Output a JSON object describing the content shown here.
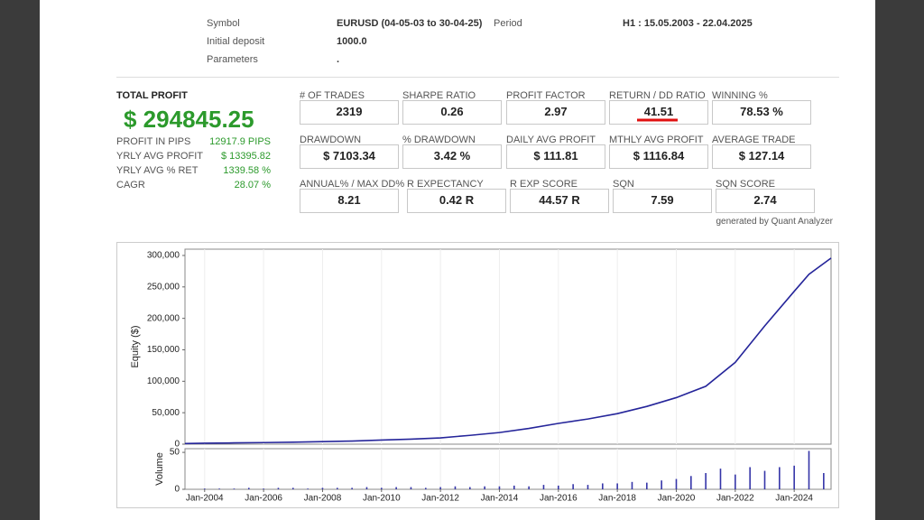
{
  "header": {
    "rows": [
      [
        "Symbol",
        "EURUSD (04-05-03 to 30-04-25)",
        "Period",
        "H1 : 15.05.2003 - 22.04.2025"
      ],
      [
        "Initial deposit",
        "1000.0"
      ],
      [
        "Parameters",
        "."
      ]
    ]
  },
  "summary": {
    "title": "TOTAL PROFIT",
    "total": "$ 294845.25",
    "rows": [
      [
        "PROFIT IN PIPS",
        "12917.9 PIPS"
      ],
      [
        "YRLY AVG PROFIT",
        "$ 13395.82"
      ],
      [
        "YRLY AVG % RET",
        "1339.58 %"
      ],
      [
        "CAGR",
        "28.07 %"
      ]
    ]
  },
  "metrics": [
    [
      {
        "label": "# OF TRADES",
        "value": "2319"
      },
      {
        "label": "SHARPE RATIO",
        "value": "0.26"
      },
      {
        "label": "PROFIT FACTOR",
        "value": "2.97"
      },
      {
        "label": "RETURN / DD RATIO",
        "value": "41.51"
      },
      {
        "label": "WINNING %",
        "value": "78.53 %"
      }
    ],
    [
      {
        "label": "DRAWDOWN",
        "value": "$ 7103.34"
      },
      {
        "label": "% DRAWDOWN",
        "value": "3.42 %"
      },
      {
        "label": "DAILY AVG PROFIT",
        "value": "$ 111.81"
      },
      {
        "label": "MTHLY AVG PROFIT",
        "value": "$ 1116.84"
      },
      {
        "label": "AVERAGE TRADE",
        "value": "$ 127.14"
      }
    ],
    [
      {
        "label": "ANNUAL% / MAX DD%",
        "value": "8.21"
      },
      {
        "label": "R EXPECTANCY",
        "value": "0.42 R"
      },
      {
        "label": "R EXP SCORE",
        "value": "44.57 R"
      },
      {
        "label": "SQN",
        "value": "7.59"
      },
      {
        "label": "SQN SCORE",
        "value": "2.74"
      }
    ]
  ],
  "footer_note": "generated by Quant Analyzer",
  "chart_data": [
    {
      "type": "line",
      "y_label": "Equity ($)",
      "color": "#25259a",
      "grid": true,
      "x": [
        "May-2003",
        "Jan-2004",
        "Jan-2005",
        "Jan-2006",
        "Jan-2007",
        "Jan-2008",
        "Jan-2009",
        "Jan-2010",
        "Jan-2011",
        "Jan-2012",
        "Jan-2013",
        "Jan-2014",
        "Jan-2015",
        "Jan-2016",
        "Jan-2017",
        "Jan-2018",
        "Jan-2019",
        "Jan-2020",
        "Jan-2021",
        "Jan-2022",
        "Jan-2023",
        "Jan-2024",
        "Jul-2024",
        "Apr-2025"
      ],
      "values": [
        1000,
        1500,
        2000,
        2500,
        3200,
        4000,
        5000,
        6500,
        8000,
        10000,
        14000,
        18500,
        25000,
        33000,
        40000,
        48500,
        60000,
        74000,
        92000,
        130000,
        188000,
        243000,
        270000,
        295845
      ],
      "xlim": [
        "May-2003",
        "Apr-2025"
      ],
      "ylim": [
        0,
        310000
      ],
      "yticks": [
        0,
        {
          "value": 50000,
          "label": "50,000"
        },
        {
          "value": 100000,
          "label": "100,000"
        },
        {
          "value": 150000,
          "label": "150,000"
        },
        {
          "value": 200000,
          "label": "200,000"
        },
        {
          "value": 250000,
          "label": "250,000"
        },
        {
          "value": 300000,
          "label": "300,000"
        }
      ]
    },
    {
      "type": "bar",
      "y_label": "Volume",
      "color": "#3535a8",
      "grid": true,
      "x": [
        "Jan-2004",
        "Jul-2004",
        "Jan-2005",
        "Jul-2005",
        "Jan-2006",
        "Jul-2006",
        "Jan-2007",
        "Jul-2007",
        "Jan-2008",
        "Jul-2008",
        "Jan-2009",
        "Jul-2009",
        "Jan-2010",
        "Jul-2010",
        "Jan-2011",
        "Jul-2011",
        "Jan-2012",
        "Jul-2012",
        "Jan-2013",
        "Jul-2013",
        "Jan-2014",
        "Jul-2014",
        "Jan-2015",
        "Jul-2015",
        "Jan-2016",
        "Jul-2016",
        "Jan-2017",
        "Jul-2017",
        "Jan-2018",
        "Jul-2018",
        "Jan-2019",
        "Jul-2019",
        "Jan-2020",
        "Jul-2020",
        "Jan-2021",
        "Jul-2021",
        "Jan-2022",
        "Jul-2022",
        "Jan-2023",
        "Jul-2023",
        "Jan-2024",
        "Jul-2024",
        "Jan-2025"
      ],
      "values": [
        1,
        1,
        1,
        2,
        1,
        2,
        2,
        1,
        2,
        2,
        2,
        3,
        2,
        3,
        3,
        2,
        3,
        4,
        3,
        4,
        4,
        5,
        4,
        6,
        5,
        7,
        6,
        8,
        8,
        10,
        9,
        12,
        14,
        18,
        22,
        28,
        20,
        30,
        25,
        30,
        32,
        52,
        22
      ],
      "xlim": [
        "May-2003",
        "Apr-2025"
      ],
      "ylim": [
        0,
        55
      ],
      "yticks": [
        0,
        50
      ],
      "xticks": [
        "Jan-2004",
        "Jan-2006",
        "Jan-2008",
        "Jan-2010",
        "Jan-2012",
        "Jan-2014",
        "Jan-2016",
        "Jan-2018",
        "Jan-2020",
        "Jan-2022",
        "Jan-2024"
      ]
    }
  ]
}
